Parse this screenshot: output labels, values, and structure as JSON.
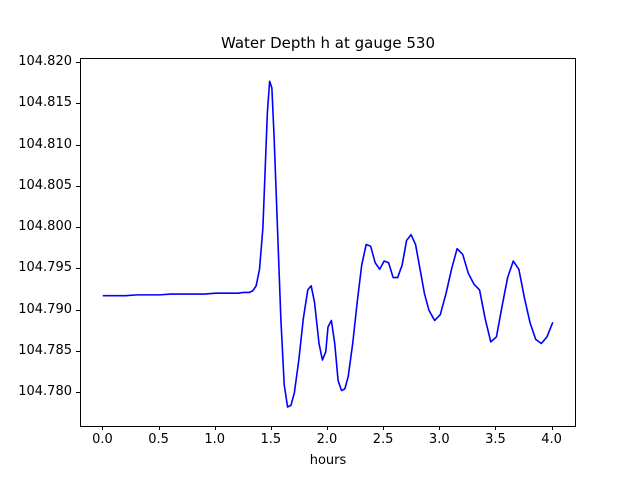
{
  "figure": {
    "title": "Water Depth h at gauge 530",
    "xlabel": "hours"
  },
  "chart_data": {
    "type": "line",
    "title": "Water Depth h at gauge 530",
    "xlabel": "hours",
    "ylabel": "",
    "line_color": "#0000ff",
    "line_width": 1.6,
    "grid": false,
    "legend": "none",
    "xlim": [
      -0.2,
      4.2
    ],
    "ylim": [
      104.776,
      104.8205
    ],
    "xticks": [
      0.0,
      0.5,
      1.0,
      1.5,
      2.0,
      2.5,
      3.0,
      3.5,
      4.0
    ],
    "xtick_labels": [
      "0.0",
      "0.5",
      "1.0",
      "1.5",
      "2.0",
      "2.5",
      "3.0",
      "3.5",
      "4.0"
    ],
    "yticks": [
      104.78,
      104.785,
      104.79,
      104.795,
      104.8,
      104.805,
      104.81,
      104.815,
      104.82
    ],
    "ytick_labels": [
      "104.780",
      "104.785",
      "104.790",
      "104.795",
      "104.800",
      "104.805",
      "104.810",
      "104.815",
      "104.820"
    ],
    "points": [
      [
        0.0,
        104.7918
      ],
      [
        0.1,
        104.7918
      ],
      [
        0.2,
        104.7918
      ],
      [
        0.3,
        104.7919
      ],
      [
        0.4,
        104.7919
      ],
      [
        0.5,
        104.7919
      ],
      [
        0.6,
        104.792
      ],
      [
        0.7,
        104.792
      ],
      [
        0.8,
        104.792
      ],
      [
        0.9,
        104.792
      ],
      [
        1.0,
        104.7921
      ],
      [
        1.1,
        104.7921
      ],
      [
        1.2,
        104.7921
      ],
      [
        1.25,
        104.7922
      ],
      [
        1.3,
        104.7922
      ],
      [
        1.33,
        104.7924
      ],
      [
        1.36,
        104.793
      ],
      [
        1.39,
        104.795
      ],
      [
        1.42,
        104.8
      ],
      [
        1.44,
        104.807
      ],
      [
        1.46,
        104.814
      ],
      [
        1.48,
        104.8178
      ],
      [
        1.5,
        104.817
      ],
      [
        1.52,
        104.811
      ],
      [
        1.55,
        104.8
      ],
      [
        1.58,
        104.789
      ],
      [
        1.61,
        104.781
      ],
      [
        1.64,
        104.7783
      ],
      [
        1.67,
        104.7785
      ],
      [
        1.7,
        104.78
      ],
      [
        1.74,
        104.784
      ],
      [
        1.78,
        104.789
      ],
      [
        1.82,
        104.7925
      ],
      [
        1.85,
        104.793
      ],
      [
        1.88,
        104.791
      ],
      [
        1.92,
        104.786
      ],
      [
        1.95,
        104.784
      ],
      [
        1.98,
        104.785
      ],
      [
        2.0,
        104.788
      ],
      [
        2.03,
        104.7888
      ],
      [
        2.06,
        104.786
      ],
      [
        2.09,
        104.7815
      ],
      [
        2.12,
        104.7803
      ],
      [
        2.15,
        104.7805
      ],
      [
        2.18,
        104.782
      ],
      [
        2.22,
        104.786
      ],
      [
        2.26,
        104.791
      ],
      [
        2.3,
        104.7955
      ],
      [
        2.34,
        104.798
      ],
      [
        2.38,
        104.7978
      ],
      [
        2.42,
        104.7958
      ],
      [
        2.46,
        104.795
      ],
      [
        2.5,
        104.796
      ],
      [
        2.54,
        104.7958
      ],
      [
        2.58,
        104.794
      ],
      [
        2.62,
        104.794
      ],
      [
        2.66,
        104.7955
      ],
      [
        2.7,
        104.7985
      ],
      [
        2.74,
        104.7992
      ],
      [
        2.78,
        104.798
      ],
      [
        2.82,
        104.795
      ],
      [
        2.86,
        104.792
      ],
      [
        2.9,
        104.79
      ],
      [
        2.95,
        104.7888
      ],
      [
        3.0,
        104.7895
      ],
      [
        3.05,
        104.792
      ],
      [
        3.1,
        104.795
      ],
      [
        3.15,
        104.7975
      ],
      [
        3.2,
        104.7968
      ],
      [
        3.25,
        104.7945
      ],
      [
        3.3,
        104.7932
      ],
      [
        3.35,
        104.7925
      ],
      [
        3.4,
        104.789
      ],
      [
        3.45,
        104.7862
      ],
      [
        3.5,
        104.7868
      ],
      [
        3.55,
        104.7905
      ],
      [
        3.6,
        104.794
      ],
      [
        3.65,
        104.796
      ],
      [
        3.7,
        104.795
      ],
      [
        3.75,
        104.7915
      ],
      [
        3.8,
        104.7885
      ],
      [
        3.85,
        104.7865
      ],
      [
        3.9,
        104.786
      ],
      [
        3.95,
        104.7868
      ],
      [
        4.0,
        104.7885
      ]
    ]
  }
}
